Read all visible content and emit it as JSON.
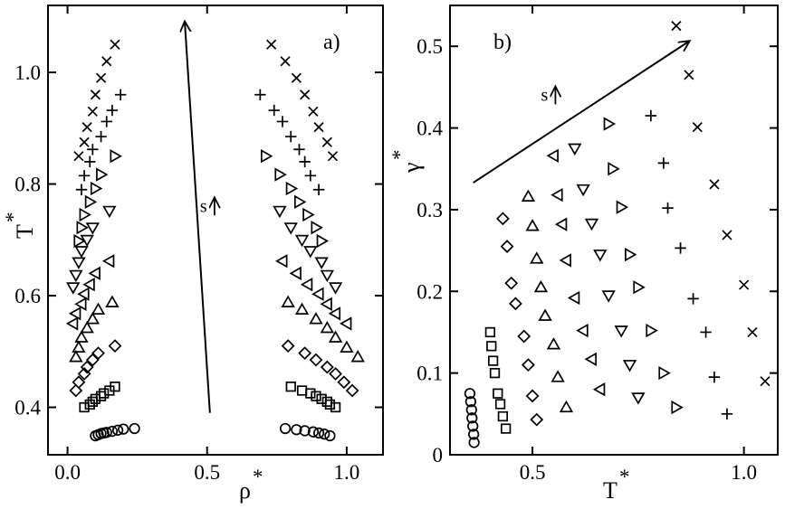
{
  "chart_data": [
    {
      "panel": "a)",
      "type": "scatter",
      "xlabel": "ρ",
      "xlabel_sup": "*",
      "ylabel": "T",
      "ylabel_sup": "*",
      "xlim": [
        -0.07,
        1.13
      ],
      "ylim": [
        0.315,
        1.12
      ],
      "xticks": [
        0.0,
        0.5,
        1.0
      ],
      "xtick_labels": [
        "0.0",
        "0.5",
        "1.0"
      ],
      "yticks": [
        0.4,
        0.6,
        0.8,
        1.0
      ],
      "ytick_labels": [
        "0.4",
        "0.6",
        "0.8",
        "1.0"
      ],
      "arrow": {
        "x1": 0.51,
        "y1": 0.39,
        "x2": 0.42,
        "y2": 1.09
      },
      "annotation": {
        "text": "s",
        "x": 0.52,
        "y": 0.76
      },
      "series": [
        {
          "marker": "circle",
          "points": [
            [
              0.1,
              0.349
            ],
            [
              0.11,
              0.351
            ],
            [
              0.12,
              0.353
            ],
            [
              0.13,
              0.354
            ],
            [
              0.14,
              0.355
            ],
            [
              0.16,
              0.357
            ],
            [
              0.18,
              0.359
            ],
            [
              0.2,
              0.361
            ],
            [
              0.24,
              0.362
            ],
            [
              0.78,
              0.362
            ],
            [
              0.82,
              0.36
            ],
            [
              0.85,
              0.358
            ],
            [
              0.88,
              0.356
            ],
            [
              0.9,
              0.354
            ],
            [
              0.92,
              0.352
            ],
            [
              0.94,
              0.349
            ]
          ]
        },
        {
          "marker": "square",
          "points": [
            [
              0.06,
              0.4
            ],
            [
              0.08,
              0.405
            ],
            [
              0.09,
              0.41
            ],
            [
              0.1,
              0.415
            ],
            [
              0.12,
              0.42
            ],
            [
              0.13,
              0.425
            ],
            [
              0.15,
              0.43
            ],
            [
              0.17,
              0.437
            ],
            [
              0.8,
              0.437
            ],
            [
              0.84,
              0.43
            ],
            [
              0.87,
              0.425
            ],
            [
              0.89,
              0.42
            ],
            [
              0.91,
              0.415
            ],
            [
              0.93,
              0.41
            ],
            [
              0.94,
              0.405
            ],
            [
              0.96,
              0.4
            ]
          ]
        },
        {
          "marker": "diamond",
          "points": [
            [
              0.03,
              0.43
            ],
            [
              0.04,
              0.445
            ],
            [
              0.06,
              0.46
            ],
            [
              0.07,
              0.472
            ],
            [
              0.09,
              0.485
            ],
            [
              0.11,
              0.497
            ],
            [
              0.17,
              0.51
            ],
            [
              0.79,
              0.51
            ],
            [
              0.85,
              0.497
            ],
            [
              0.89,
              0.485
            ],
            [
              0.93,
              0.472
            ],
            [
              0.96,
              0.46
            ],
            [
              0.99,
              0.445
            ],
            [
              1.02,
              0.43
            ]
          ]
        },
        {
          "marker": "triangle-up",
          "points": [
            [
              0.03,
              0.49
            ],
            [
              0.04,
              0.507
            ],
            [
              0.05,
              0.525
            ],
            [
              0.07,
              0.542
            ],
            [
              0.09,
              0.558
            ],
            [
              0.11,
              0.575
            ],
            [
              0.16,
              0.588
            ],
            [
              0.79,
              0.588
            ],
            [
              0.84,
              0.575
            ],
            [
              0.89,
              0.558
            ],
            [
              0.93,
              0.542
            ],
            [
              0.96,
              0.525
            ],
            [
              1.0,
              0.507
            ],
            [
              1.04,
              0.49
            ]
          ]
        },
        {
          "marker": "triangle-left",
          "points": [
            [
              0.02,
              0.55
            ],
            [
              0.03,
              0.568
            ],
            [
              0.05,
              0.585
            ],
            [
              0.06,
              0.603
            ],
            [
              0.08,
              0.62
            ],
            [
              0.1,
              0.64
            ],
            [
              0.15,
              0.662
            ],
            [
              0.77,
              0.662
            ],
            [
              0.82,
              0.64
            ],
            [
              0.86,
              0.62
            ],
            [
              0.9,
              0.603
            ],
            [
              0.93,
              0.585
            ],
            [
              0.96,
              0.568
            ],
            [
              1.0,
              0.55
            ]
          ]
        },
        {
          "marker": "triangle-down",
          "points": [
            [
              0.02,
              0.615
            ],
            [
              0.03,
              0.637
            ],
            [
              0.04,
              0.66
            ],
            [
              0.05,
              0.68
            ],
            [
              0.07,
              0.7
            ],
            [
              0.09,
              0.722
            ],
            [
              0.15,
              0.752
            ],
            [
              0.76,
              0.752
            ],
            [
              0.8,
              0.722
            ],
            [
              0.84,
              0.7
            ],
            [
              0.87,
              0.68
            ],
            [
              0.91,
              0.66
            ],
            [
              0.93,
              0.637
            ],
            [
              0.96,
              0.615
            ]
          ]
        },
        {
          "marker": "triangle-right",
          "points": [
            [
              0.04,
              0.698
            ],
            [
              0.05,
              0.722
            ],
            [
              0.06,
              0.745
            ],
            [
              0.08,
              0.768
            ],
            [
              0.1,
              0.792
            ],
            [
              0.12,
              0.817
            ],
            [
              0.17,
              0.85
            ],
            [
              0.71,
              0.85
            ],
            [
              0.76,
              0.817
            ],
            [
              0.8,
              0.792
            ],
            [
              0.83,
              0.768
            ],
            [
              0.86,
              0.745
            ],
            [
              0.89,
              0.722
            ],
            [
              0.91,
              0.698
            ]
          ]
        },
        {
          "marker": "plus",
          "points": [
            [
              0.05,
              0.79
            ],
            [
              0.06,
              0.815
            ],
            [
              0.08,
              0.84
            ],
            [
              0.09,
              0.862
            ],
            [
              0.12,
              0.885
            ],
            [
              0.14,
              0.912
            ],
            [
              0.16,
              0.932
            ],
            [
              0.19,
              0.96
            ],
            [
              0.69,
              0.96
            ],
            [
              0.74,
              0.932
            ],
            [
              0.77,
              0.912
            ],
            [
              0.8,
              0.885
            ],
            [
              0.83,
              0.862
            ],
            [
              0.85,
              0.84
            ],
            [
              0.87,
              0.815
            ],
            [
              0.9,
              0.79
            ]
          ]
        },
        {
          "marker": "cross",
          "points": [
            [
              0.04,
              0.85
            ],
            [
              0.06,
              0.875
            ],
            [
              0.07,
              0.902
            ],
            [
              0.09,
              0.93
            ],
            [
              0.1,
              0.96
            ],
            [
              0.12,
              0.99
            ],
            [
              0.14,
              1.02
            ],
            [
              0.17,
              1.05
            ],
            [
              0.73,
              1.05
            ],
            [
              0.78,
              1.02
            ],
            [
              0.82,
              0.99
            ],
            [
              0.85,
              0.96
            ],
            [
              0.88,
              0.93
            ],
            [
              0.9,
              0.902
            ],
            [
              0.93,
              0.875
            ],
            [
              0.95,
              0.85
            ]
          ]
        }
      ]
    },
    {
      "panel": "b)",
      "type": "scatter",
      "xlabel": "T",
      "xlabel_sup": "*",
      "ylabel": "γ",
      "ylabel_sup": "*",
      "xlim": [
        0.305,
        1.08
      ],
      "ylim": [
        0.0,
        0.55
      ],
      "xticks": [
        0.5,
        1.0
      ],
      "xtick_labels": [
        "0.5",
        "1.0"
      ],
      "yticks": [
        0.0,
        0.1,
        0.2,
        0.3,
        0.4,
        0.5
      ],
      "ytick_labels": [
        "0",
        "0.1",
        "0.2",
        "0.3",
        "0.4",
        "0.5"
      ],
      "arrow": {
        "x1": 0.36,
        "y1": 0.333,
        "x2": 0.87,
        "y2": 0.506
      },
      "annotation": {
        "text": "s",
        "x": 0.55,
        "y": 0.44
      },
      "series": [
        {
          "marker": "circle",
          "points": [
            [
              0.352,
              0.075
            ],
            [
              0.354,
              0.065
            ],
            [
              0.356,
              0.055
            ],
            [
              0.357,
              0.045
            ],
            [
              0.359,
              0.035
            ],
            [
              0.361,
              0.025
            ],
            [
              0.362,
              0.015
            ]
          ]
        },
        {
          "marker": "square",
          "points": [
            [
              0.4,
              0.15
            ],
            [
              0.403,
              0.133
            ],
            [
              0.407,
              0.115
            ],
            [
              0.411,
              0.1
            ],
            [
              0.418,
              0.075
            ],
            [
              0.424,
              0.062
            ],
            [
              0.43,
              0.047
            ],
            [
              0.437,
              0.032
            ]
          ]
        },
        {
          "marker": "diamond",
          "points": [
            [
              0.43,
              0.289
            ],
            [
              0.44,
              0.255
            ],
            [
              0.45,
              0.21
            ],
            [
              0.46,
              0.185
            ],
            [
              0.48,
              0.145
            ],
            [
              0.49,
              0.11
            ],
            [
              0.5,
              0.072
            ],
            [
              0.51,
              0.043
            ]
          ]
        },
        {
          "marker": "triangle-up",
          "points": [
            [
              0.49,
              0.316
            ],
            [
              0.5,
              0.28
            ],
            [
              0.51,
              0.24
            ],
            [
              0.52,
              0.205
            ],
            [
              0.53,
              0.17
            ],
            [
              0.55,
              0.135
            ],
            [
              0.56,
              0.095
            ],
            [
              0.58,
              0.058
            ]
          ]
        },
        {
          "marker": "triangle-left",
          "points": [
            [
              0.55,
              0.366
            ],
            [
              0.56,
              0.318
            ],
            [
              0.57,
              0.282
            ],
            [
              0.58,
              0.238
            ],
            [
              0.6,
              0.192
            ],
            [
              0.62,
              0.152
            ],
            [
              0.64,
              0.117
            ],
            [
              0.66,
              0.08
            ]
          ]
        },
        {
          "marker": "triangle-down",
          "points": [
            [
              0.6,
              0.375
            ],
            [
              0.62,
              0.325
            ],
            [
              0.64,
              0.283
            ],
            [
              0.66,
              0.245
            ],
            [
              0.68,
              0.195
            ],
            [
              0.71,
              0.152
            ],
            [
              0.73,
              0.11
            ],
            [
              0.75,
              0.07
            ]
          ]
        },
        {
          "marker": "triangle-right",
          "points": [
            [
              0.68,
              0.405
            ],
            [
              0.69,
              0.35
            ],
            [
              0.71,
              0.303
            ],
            [
              0.73,
              0.245
            ],
            [
              0.75,
              0.205
            ],
            [
              0.78,
              0.152
            ],
            [
              0.81,
              0.1
            ],
            [
              0.84,
              0.058
            ]
          ]
        },
        {
          "marker": "plus",
          "points": [
            [
              0.78,
              0.415
            ],
            [
              0.81,
              0.357
            ],
            [
              0.82,
              0.302
            ],
            [
              0.85,
              0.253
            ],
            [
              0.88,
              0.191
            ],
            [
              0.91,
              0.15
            ],
            [
              0.93,
              0.095
            ],
            [
              0.96,
              0.05
            ]
          ]
        },
        {
          "marker": "cross",
          "points": [
            [
              0.84,
              0.525
            ],
            [
              0.87,
              0.465
            ],
            [
              0.89,
              0.401
            ],
            [
              0.93,
              0.331
            ],
            [
              0.96,
              0.269
            ],
            [
              1.0,
              0.208
            ],
            [
              1.02,
              0.15
            ],
            [
              1.05,
              0.09
            ]
          ]
        }
      ]
    }
  ]
}
